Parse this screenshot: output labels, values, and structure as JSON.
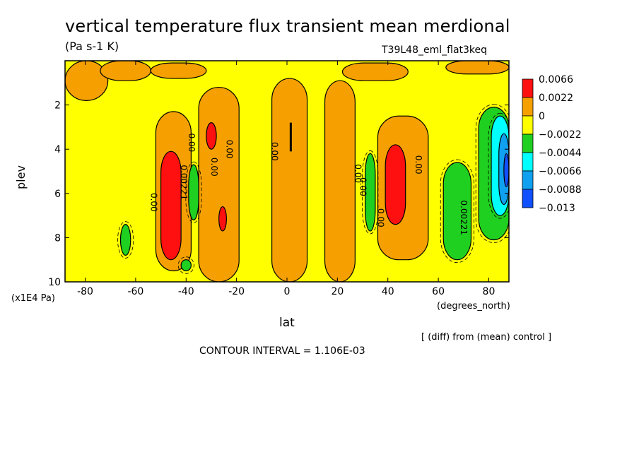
{
  "title": "vertical temperature flux transient mean merdional",
  "units": "(Pa s-1 K)",
  "run_id": "T39L48_eml_flat3keq",
  "footer_note": "[ (diff) from (mean) control ]",
  "contour_interval": "CONTOUR INTERVAL = 1.106E-03",
  "colors": {
    "red": "#ff1010",
    "orange": "#f5a000",
    "yellow": "#ffff00",
    "green": "#20d020",
    "cyan": "#00ffff",
    "lightblue": "#10a0f0",
    "blue": "#1050ff"
  },
  "chart_data": {
    "type": "heatmap",
    "xlabel": "lat",
    "xunits": "(degrees_north)",
    "ylabel": "plev",
    "yunits": "(x1E4 Pa)",
    "xlim": [
      -88,
      88
    ],
    "ylim": [
      0,
      10
    ],
    "y_inverted": true,
    "xticks": [
      "-80",
      "-60",
      "-40",
      "-20",
      "0",
      "20",
      "40",
      "60",
      "80"
    ],
    "xtick_values": [
      -80,
      -60,
      -40,
      -20,
      0,
      20,
      40,
      60,
      80
    ],
    "yticks": [
      "2",
      "4",
      "6",
      "8",
      "10"
    ],
    "ytick_values": [
      2,
      4,
      6,
      8,
      10
    ],
    "legend": {
      "placement": "right",
      "entries": [
        {
          "label": "0.0066",
          "color": "#ff1010"
        },
        {
          "label": "0.0022",
          "color": "#f5a000"
        },
        {
          "label": "0",
          "color": "#ffff00"
        },
        {
          "label": "−0.0022",
          "color": "#20d020"
        },
        {
          "label": "−0.0044",
          "color": "#00ffff"
        },
        {
          "label": "−0.0066",
          "color": "#10a0f0"
        },
        {
          "label": "−0.0088",
          "color": "#1050ff"
        },
        {
          "label": "−0.013",
          "color": ""
        }
      ]
    },
    "background_class": "yellow",
    "regions": [
      {
        "cls": "orange",
        "lat": -88,
        "dlat": 17,
        "plev": 0,
        "dplev": 1.8
      },
      {
        "cls": "orange",
        "lat": -74,
        "dlat": 20,
        "plev": 0,
        "dplev": 0.9
      },
      {
        "cls": "orange",
        "lat": -54,
        "dlat": 22,
        "plev": 0.1,
        "dplev": 0.7
      },
      {
        "cls": "orange",
        "lat": -52,
        "dlat": 14,
        "plev": 2.3,
        "dplev": 7.2
      },
      {
        "cls": "orange",
        "lat": -35,
        "dlat": 16,
        "plev": 1.2,
        "dplev": 8.8
      },
      {
        "cls": "orange",
        "lat": -6,
        "dlat": 14,
        "plev": 0.8,
        "dplev": 9.2
      },
      {
        "cls": "orange",
        "lat": 15,
        "dlat": 12,
        "plev": 0.9,
        "dplev": 9.1
      },
      {
        "cls": "orange",
        "lat": 22,
        "dlat": 26,
        "plev": 0.1,
        "dplev": 0.8
      },
      {
        "cls": "orange",
        "lat": 36,
        "dlat": 20,
        "plev": 2.5,
        "dplev": 6.5
      },
      {
        "cls": "orange",
        "lat": 63,
        "dlat": 25,
        "plev": 0,
        "dplev": 0.6
      },
      {
        "cls": "red",
        "lat": -50,
        "dlat": 8,
        "plev": 4.1,
        "dplev": 4.9
      },
      {
        "cls": "red",
        "lat": -32,
        "dlat": 4,
        "plev": 2.8,
        "dplev": 1.2
      },
      {
        "cls": "red",
        "lat": -27,
        "dlat": 3,
        "plev": 6.6,
        "dplev": 1.1
      },
      {
        "cls": "red",
        "lat": 39,
        "dlat": 8,
        "plev": 3.8,
        "dplev": 3.6
      },
      {
        "cls": "green",
        "lat": -66,
        "dlat": 4,
        "plev": 7.4,
        "dplev": 1.4
      },
      {
        "cls": "green",
        "lat": -39,
        "dlat": 4,
        "plev": 4.7,
        "dplev": 2.5
      },
      {
        "cls": "green",
        "lat": -42,
        "dlat": 4,
        "plev": 9.0,
        "dplev": 0.5
      },
      {
        "cls": "green",
        "lat": 31,
        "dlat": 4,
        "plev": 4.2,
        "dplev": 3.5
      },
      {
        "cls": "green",
        "lat": 62,
        "dlat": 11,
        "plev": 4.6,
        "dplev": 4.4
      },
      {
        "cls": "green",
        "lat": 76,
        "dlat": 12,
        "plev": 2.1,
        "dplev": 6.0
      },
      {
        "cls": "cyan",
        "lat": 81,
        "dlat": 7,
        "plev": 2.5,
        "dplev": 4.5
      },
      {
        "cls": "lightblue",
        "lat": 84,
        "dlat": 4,
        "plev": 3.3,
        "dplev": 3.2
      },
      {
        "cls": "blue",
        "lat": 86,
        "dlat": 2,
        "plev": 4.2,
        "dplev": 1.5
      }
    ],
    "contour_labels": [
      {
        "text": "0.00",
        "lat": -54,
        "plev": 6.4
      },
      {
        "text": "0.00221",
        "lat": -42,
        "plev": 5.5
      },
      {
        "text": "0.00",
        "lat": -39,
        "plev": 3.7
      },
      {
        "text": "0.00",
        "lat": -30,
        "plev": 4.8
      },
      {
        "text": "0.00",
        "lat": -24,
        "plev": 4.0
      },
      {
        "text": "0.00",
        "lat": -6,
        "plev": 4.1
      },
      {
        "text": "0.00",
        "lat": 27,
        "plev": 5.1
      },
      {
        "text": "0.00",
        "lat": 29,
        "plev": 5.7
      },
      {
        "text": "0.00",
        "lat": 36,
        "plev": 7.1
      },
      {
        "text": "0.00",
        "lat": 51,
        "plev": 4.7
      },
      {
        "text": "0.00221",
        "lat": 69,
        "plev": 7.1
      }
    ]
  }
}
